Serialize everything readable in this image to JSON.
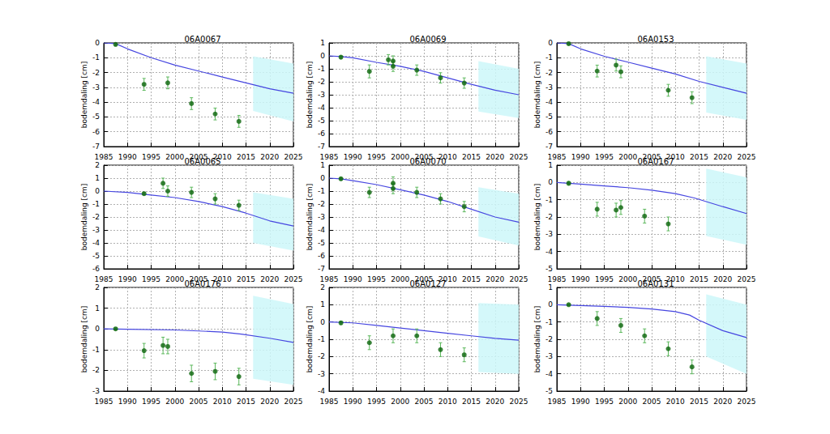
{
  "chart_data": [
    {
      "type": "line",
      "title": "06A0067",
      "y_label": "bodemdaling [cm]",
      "grid": true,
      "xlim": [
        1985,
        2025
      ],
      "xticks": [
        1985,
        1990,
        1995,
        2000,
        2005,
        2010,
        2015,
        2020,
        2025
      ],
      "ylim": [
        -7,
        0
      ],
      "yticks": [
        -7,
        -6,
        -5,
        -4,
        -3,
        -2,
        -1,
        0
      ],
      "series": [
        {
          "type": "line",
          "color": "#4646e0",
          "x": [
            1985,
            1987.5,
            1990,
            1995,
            2000,
            2005,
            2010,
            2015,
            2020,
            2025
          ],
          "values": [
            0,
            -0.05,
            -0.4,
            -1.0,
            -1.5,
            -1.9,
            -2.3,
            -2.7,
            -3.1,
            -3.4
          ]
        },
        {
          "type": "scatter",
          "marker": "circle",
          "color": "#0a640a",
          "x": [
            1987.5,
            1993.5,
            1998.5,
            2003.5,
            2008.5,
            2013.5
          ],
          "values": [
            -0.1,
            -2.8,
            -2.7,
            -4.1,
            -4.8,
            -5.3
          ],
          "errors": [
            0.1,
            0.4,
            0.4,
            0.4,
            0.4,
            0.4
          ]
        }
      ],
      "band": {
        "color": "#ccf7f9",
        "x": [
          2016.5,
          2025
        ],
        "upper": [
          -0.9,
          -1.4
        ],
        "lower": [
          -4.6,
          -5.3
        ]
      }
    },
    {
      "type": "line",
      "title": "06A0069",
      "y_label": "bodemdaling [cm]",
      "grid": true,
      "xlim": [
        1985,
        2025
      ],
      "xticks": [
        1985,
        1990,
        1995,
        2000,
        2005,
        2010,
        2015,
        2020,
        2025
      ],
      "ylim": [
        -7,
        1
      ],
      "yticks": [
        -7,
        -6,
        -5,
        -4,
        -3,
        -2,
        -1,
        0,
        1
      ],
      "series": [
        {
          "type": "line",
          "color": "#4646e0",
          "x": [
            1985,
            1987.5,
            1990,
            1995,
            2000,
            2005,
            2010,
            2015,
            2020,
            2025
          ],
          "values": [
            0,
            -0.05,
            -0.15,
            -0.5,
            -0.8,
            -1.2,
            -1.7,
            -2.2,
            -2.65,
            -3.0
          ]
        },
        {
          "type": "scatter",
          "marker": "circle",
          "color": "#0a640a",
          "x": [
            1987.5,
            1993.5,
            1997.5,
            1998.5,
            1998.5,
            2003.5,
            2008.5,
            2013.5
          ],
          "values": [
            -0.1,
            -1.2,
            -0.3,
            -0.4,
            -0.8,
            -1.1,
            -1.7,
            -2.1
          ],
          "errors": [
            0.1,
            0.5,
            0.4,
            0.4,
            0.4,
            0.4,
            0.4,
            0.4
          ]
        }
      ],
      "band": {
        "color": "#ccf7f9",
        "x": [
          2016.5,
          2025
        ],
        "upper": [
          -0.4,
          -1.0
        ],
        "lower": [
          -4.3,
          -4.8
        ]
      }
    },
    {
      "type": "line",
      "title": "06A0153",
      "y_label": "bodemdaling [cm]",
      "grid": true,
      "xlim": [
        1985,
        2025
      ],
      "xticks": [
        1985,
        1990,
        1995,
        2000,
        2005,
        2010,
        2015,
        2020,
        2025
      ],
      "ylim": [
        -7,
        0
      ],
      "yticks": [
        -7,
        -6,
        -5,
        -4,
        -3,
        -2,
        -1,
        0
      ],
      "series": [
        {
          "type": "line",
          "color": "#4646e0",
          "x": [
            1985,
            1987.5,
            1990,
            1995,
            2000,
            2005,
            2010,
            2015,
            2020,
            2025
          ],
          "values": [
            0,
            -0.05,
            -0.4,
            -0.9,
            -1.3,
            -1.7,
            -2.1,
            -2.6,
            -3.0,
            -3.4
          ]
        },
        {
          "type": "scatter",
          "marker": "circle",
          "color": "#0a640a",
          "x": [
            1987.5,
            1993.5,
            1997.5,
            1998.5,
            2008.5,
            2013.5
          ],
          "values": [
            -0.05,
            -1.9,
            -1.5,
            -1.95,
            -3.2,
            -3.7
          ],
          "errors": [
            0.1,
            0.4,
            0.4,
            0.4,
            0.4,
            0.4
          ]
        }
      ],
      "band": {
        "color": "#ccf7f9",
        "x": [
          2016.5,
          2025
        ],
        "upper": [
          -0.9,
          -1.4
        ],
        "lower": [
          -4.7,
          -5.2
        ]
      }
    },
    {
      "type": "line",
      "title": "06A0065",
      "y_label": "bodemdaling [cm]",
      "grid": true,
      "xlim": [
        1985,
        2025
      ],
      "xticks": [
        1985,
        1990,
        1995,
        2000,
        2005,
        2010,
        2015,
        2020,
        2025
      ],
      "ylim": [
        -6,
        2
      ],
      "yticks": [
        -6,
        -5,
        -4,
        -3,
        -2,
        -1,
        0,
        1,
        2
      ],
      "series": [
        {
          "type": "line",
          "color": "#4646e0",
          "x": [
            1985,
            1990,
            1995,
            2000,
            2005,
            2010,
            2015,
            2020,
            2025
          ],
          "values": [
            0,
            -0.1,
            -0.3,
            -0.5,
            -0.8,
            -1.2,
            -1.7,
            -2.3,
            -2.7
          ]
        },
        {
          "type": "scatter",
          "marker": "circle",
          "color": "#0a640a",
          "x": [
            1993.5,
            1997.5,
            1998.5,
            2003.5,
            2008.5,
            2013.5
          ],
          "values": [
            -0.2,
            0.6,
            0.0,
            -0.1,
            -0.6,
            -1.1
          ],
          "errors": [
            0.1,
            0.4,
            0.4,
            0.4,
            0.4,
            0.4
          ]
        }
      ],
      "band": {
        "color": "#ccf7f9",
        "x": [
          2016.5,
          2025
        ],
        "upper": [
          -0.1,
          -0.6
        ],
        "lower": [
          -4.0,
          -4.6
        ]
      }
    },
    {
      "type": "line",
      "title": "06A0070",
      "y_label": "bodemdaling [cm]",
      "grid": true,
      "xlim": [
        1985,
        2025
      ],
      "xticks": [
        1985,
        1990,
        1995,
        2000,
        2005,
        2010,
        2015,
        2020,
        2025
      ],
      "ylim": [
        -7,
        1
      ],
      "yticks": [
        -7,
        -6,
        -5,
        -4,
        -3,
        -2,
        -1,
        0,
        1
      ],
      "series": [
        {
          "type": "line",
          "color": "#4646e0",
          "x": [
            1985,
            1987.5,
            1990,
            1995,
            2000,
            2005,
            2010,
            2015,
            2020,
            2025
          ],
          "values": [
            0,
            -0.05,
            -0.2,
            -0.5,
            -0.9,
            -1.3,
            -1.8,
            -2.4,
            -3.0,
            -3.4
          ]
        },
        {
          "type": "scatter",
          "marker": "circle",
          "color": "#0a640a",
          "x": [
            1987.5,
            1993.5,
            1998.5,
            1998.5,
            2003.5,
            2008.5,
            2013.5
          ],
          "values": [
            -0.05,
            -1.1,
            -0.4,
            -0.8,
            -1.1,
            -1.6,
            -2.2
          ],
          "errors": [
            0.1,
            0.4,
            0.5,
            0.4,
            0.4,
            0.4,
            0.4
          ]
        }
      ],
      "band": {
        "color": "#ccf7f9",
        "x": [
          2016.5,
          2025
        ],
        "upper": [
          -0.7,
          -1.2
        ],
        "lower": [
          -4.5,
          -5.2
        ]
      }
    },
    {
      "type": "line",
      "title": "06A0167",
      "y_label": "bodemdaling [cm]",
      "grid": true,
      "xlim": [
        1985,
        2025
      ],
      "xticks": [
        1985,
        1990,
        1995,
        2000,
        2005,
        2010,
        2015,
        2020,
        2025
      ],
      "ylim": [
        -5,
        1
      ],
      "yticks": [
        -5,
        -4,
        -3,
        -2,
        -1,
        0,
        1
      ],
      "series": [
        {
          "type": "line",
          "color": "#4646e0",
          "x": [
            1985,
            1990,
            1995,
            2000,
            2005,
            2010,
            2014,
            2020,
            2025
          ],
          "values": [
            0,
            -0.1,
            -0.2,
            -0.3,
            -0.45,
            -0.65,
            -0.9,
            -1.4,
            -1.8
          ]
        },
        {
          "type": "scatter",
          "marker": "circle",
          "color": "#0a640a",
          "x": [
            1987.5,
            1993.5,
            1997.5,
            1998.5,
            2003.5,
            2008.5
          ],
          "values": [
            -0.05,
            -1.55,
            -1.6,
            -1.45,
            -1.95,
            -2.4
          ],
          "errors": [
            0.1,
            0.4,
            0.4,
            0.4,
            0.4,
            0.4
          ]
        }
      ],
      "band": {
        "color": "#ccf7f9",
        "x": [
          2016.5,
          2025
        ],
        "upper": [
          0.8,
          0.3
        ],
        "lower": [
          -3.1,
          -3.6
        ]
      }
    },
    {
      "type": "line",
      "title": "06A0176",
      "y_label": "bodemdaling [cm]",
      "grid": true,
      "xlim": [
        1985,
        2025
      ],
      "xticks": [
        1985,
        1990,
        1995,
        2000,
        2005,
        2010,
        2015,
        2020,
        2025
      ],
      "ylim": [
        -3,
        2
      ],
      "yticks": [
        -3,
        -2,
        -1,
        0,
        1,
        2
      ],
      "series": [
        {
          "type": "line",
          "color": "#4646e0",
          "x": [
            1985,
            1990,
            2000,
            2005,
            2010,
            2014,
            2020,
            2025
          ],
          "values": [
            0,
            -0.02,
            -0.05,
            -0.1,
            -0.15,
            -0.25,
            -0.45,
            -0.65
          ]
        },
        {
          "type": "scatter",
          "marker": "circle",
          "color": "#0a640a",
          "x": [
            1987.5,
            1993.5,
            1997.5,
            1998.5,
            2003.5,
            2008.5,
            2013.5
          ],
          "values": [
            0,
            -1.05,
            -0.8,
            -0.85,
            -2.15,
            -2.05,
            -2.3
          ],
          "errors": [
            0.05,
            0.35,
            0.4,
            0.35,
            0.4,
            0.4,
            0.4
          ]
        }
      ],
      "band": {
        "color": "#ccf7f9",
        "x": [
          2016.5,
          2025
        ],
        "upper": [
          1.6,
          1.2
        ],
        "lower": [
          -2.4,
          -2.7
        ]
      }
    },
    {
      "type": "line",
      "title": "06A0127",
      "y_label": "bodemdaling [cm]",
      "grid": true,
      "xlim": [
        1985,
        2025
      ],
      "xticks": [
        1985,
        1990,
        1995,
        2000,
        2005,
        2010,
        2015,
        2020,
        2025
      ],
      "ylim": [
        -4,
        2
      ],
      "yticks": [
        -4,
        -3,
        -2,
        -1,
        0,
        1,
        2
      ],
      "series": [
        {
          "type": "line",
          "color": "#4646e0",
          "x": [
            1985,
            1990,
            1995,
            2000,
            2005,
            2010,
            2015,
            2020,
            2025
          ],
          "values": [
            0,
            -0.05,
            -0.2,
            -0.35,
            -0.5,
            -0.65,
            -0.8,
            -0.95,
            -1.05
          ]
        },
        {
          "type": "scatter",
          "marker": "circle",
          "color": "#0a640a",
          "x": [
            1987.5,
            1993.5,
            1998.5,
            2003.5,
            2008.5,
            2013.5
          ],
          "values": [
            -0.05,
            -1.2,
            -0.8,
            -0.8,
            -1.6,
            -1.9
          ],
          "errors": [
            0.1,
            0.4,
            0.4,
            0.4,
            0.4,
            0.4
          ]
        }
      ],
      "band": {
        "color": "#ccf7f9",
        "x": [
          2016.5,
          2025
        ],
        "upper": [
          1.1,
          1.0
        ],
        "lower": [
          -2.9,
          -3.0
        ]
      }
    },
    {
      "type": "line",
      "title": "06A0131",
      "y_label": "bodemdaling [cm]",
      "grid": true,
      "xlim": [
        1985,
        2025
      ],
      "xticks": [
        1985,
        1990,
        1995,
        2000,
        2005,
        2010,
        2015,
        2020,
        2025
      ],
      "ylim": [
        -5,
        1
      ],
      "yticks": [
        -5,
        -4,
        -3,
        -2,
        -1,
        0,
        1
      ],
      "series": [
        {
          "type": "line",
          "color": "#4646e0",
          "x": [
            1985,
            1990,
            1995,
            2000,
            2005,
            2010,
            2013,
            2015,
            2020,
            2025
          ],
          "values": [
            0,
            -0.05,
            -0.1,
            -0.15,
            -0.25,
            -0.4,
            -0.6,
            -0.9,
            -1.5,
            -1.9
          ]
        },
        {
          "type": "scatter",
          "marker": "circle",
          "color": "#0a640a",
          "x": [
            1987.5,
            1993.5,
            1998.5,
            2003.5,
            2008.5,
            2013.5
          ],
          "values": [
            0,
            -0.8,
            -1.2,
            -1.8,
            -2.55,
            -3.6
          ],
          "errors": [
            0.05,
            0.4,
            0.4,
            0.4,
            0.4,
            0.4
          ]
        }
      ],
      "band": {
        "color": "#ccf7f9",
        "x": [
          2016.5,
          2025
        ],
        "upper": [
          0.6,
          0.0
        ],
        "lower": [
          -3.0,
          -4.0
        ]
      }
    }
  ]
}
